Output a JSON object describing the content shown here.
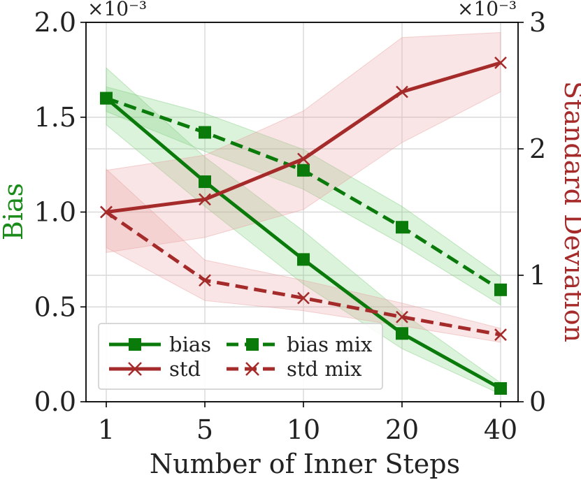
{
  "chart_data": {
    "type": "line",
    "x": [
      "1",
      "5",
      "10",
      "20",
      "40"
    ],
    "xlabel": "Number of Inner Steps",
    "left_axis": {
      "label": "Bias",
      "color": "#1a8a1a",
      "multiplier": "×10⁻³",
      "range": [
        0.0,
        2.0
      ],
      "ticks": [
        "0.0",
        "0.5",
        "1.0",
        "1.5",
        "2.0"
      ]
    },
    "right_axis": {
      "label": "Standard Deviation",
      "color": "#a52a2a",
      "multiplier": "×10⁻³",
      "range": [
        0,
        3
      ],
      "ticks": [
        "0",
        "1",
        "2",
        "3"
      ]
    },
    "series": [
      {
        "name": "bias",
        "axis": "left",
        "color": "#0a7a0a",
        "dash": false,
        "marker": "square",
        "values": [
          1.6,
          1.16,
          0.75,
          0.36,
          0.07
        ],
        "band_low": [
          1.46,
          1.03,
          0.62,
          0.28,
          0.04
        ],
        "band_high": [
          1.76,
          1.29,
          0.9,
          0.47,
          0.1
        ]
      },
      {
        "name": "bias mix",
        "axis": "left",
        "color": "#0a7a0a",
        "dash": true,
        "marker": "square",
        "values": [
          1.6,
          1.42,
          1.22,
          0.92,
          0.59
        ],
        "band_low": [
          1.53,
          1.32,
          1.12,
          0.83,
          0.51
        ],
        "band_high": [
          1.66,
          1.52,
          1.33,
          1.03,
          0.66
        ]
      },
      {
        "name": "std",
        "axis": "right",
        "color": "#a52a2a",
        "dash": false,
        "marker": "x",
        "values": [
          1.5,
          1.6,
          1.92,
          2.45,
          2.68
        ],
        "band_low": [
          1.18,
          1.3,
          1.52,
          2.05,
          2.45
        ],
        "band_high": [
          1.83,
          1.95,
          2.3,
          2.88,
          2.92
        ]
      },
      {
        "name": "std mix",
        "axis": "right",
        "color": "#a52a2a",
        "dash": true,
        "marker": "x",
        "values": [
          1.5,
          0.96,
          0.82,
          0.67,
          0.53
        ],
        "band_low": [
          1.22,
          0.8,
          0.72,
          0.6,
          0.47
        ],
        "band_high": [
          1.84,
          1.12,
          0.96,
          0.78,
          0.58
        ]
      }
    ],
    "grid": true,
    "legend": {
      "placement": "lower-left",
      "entries": [
        "bias",
        "bias mix",
        "std",
        "std mix"
      ]
    }
  }
}
